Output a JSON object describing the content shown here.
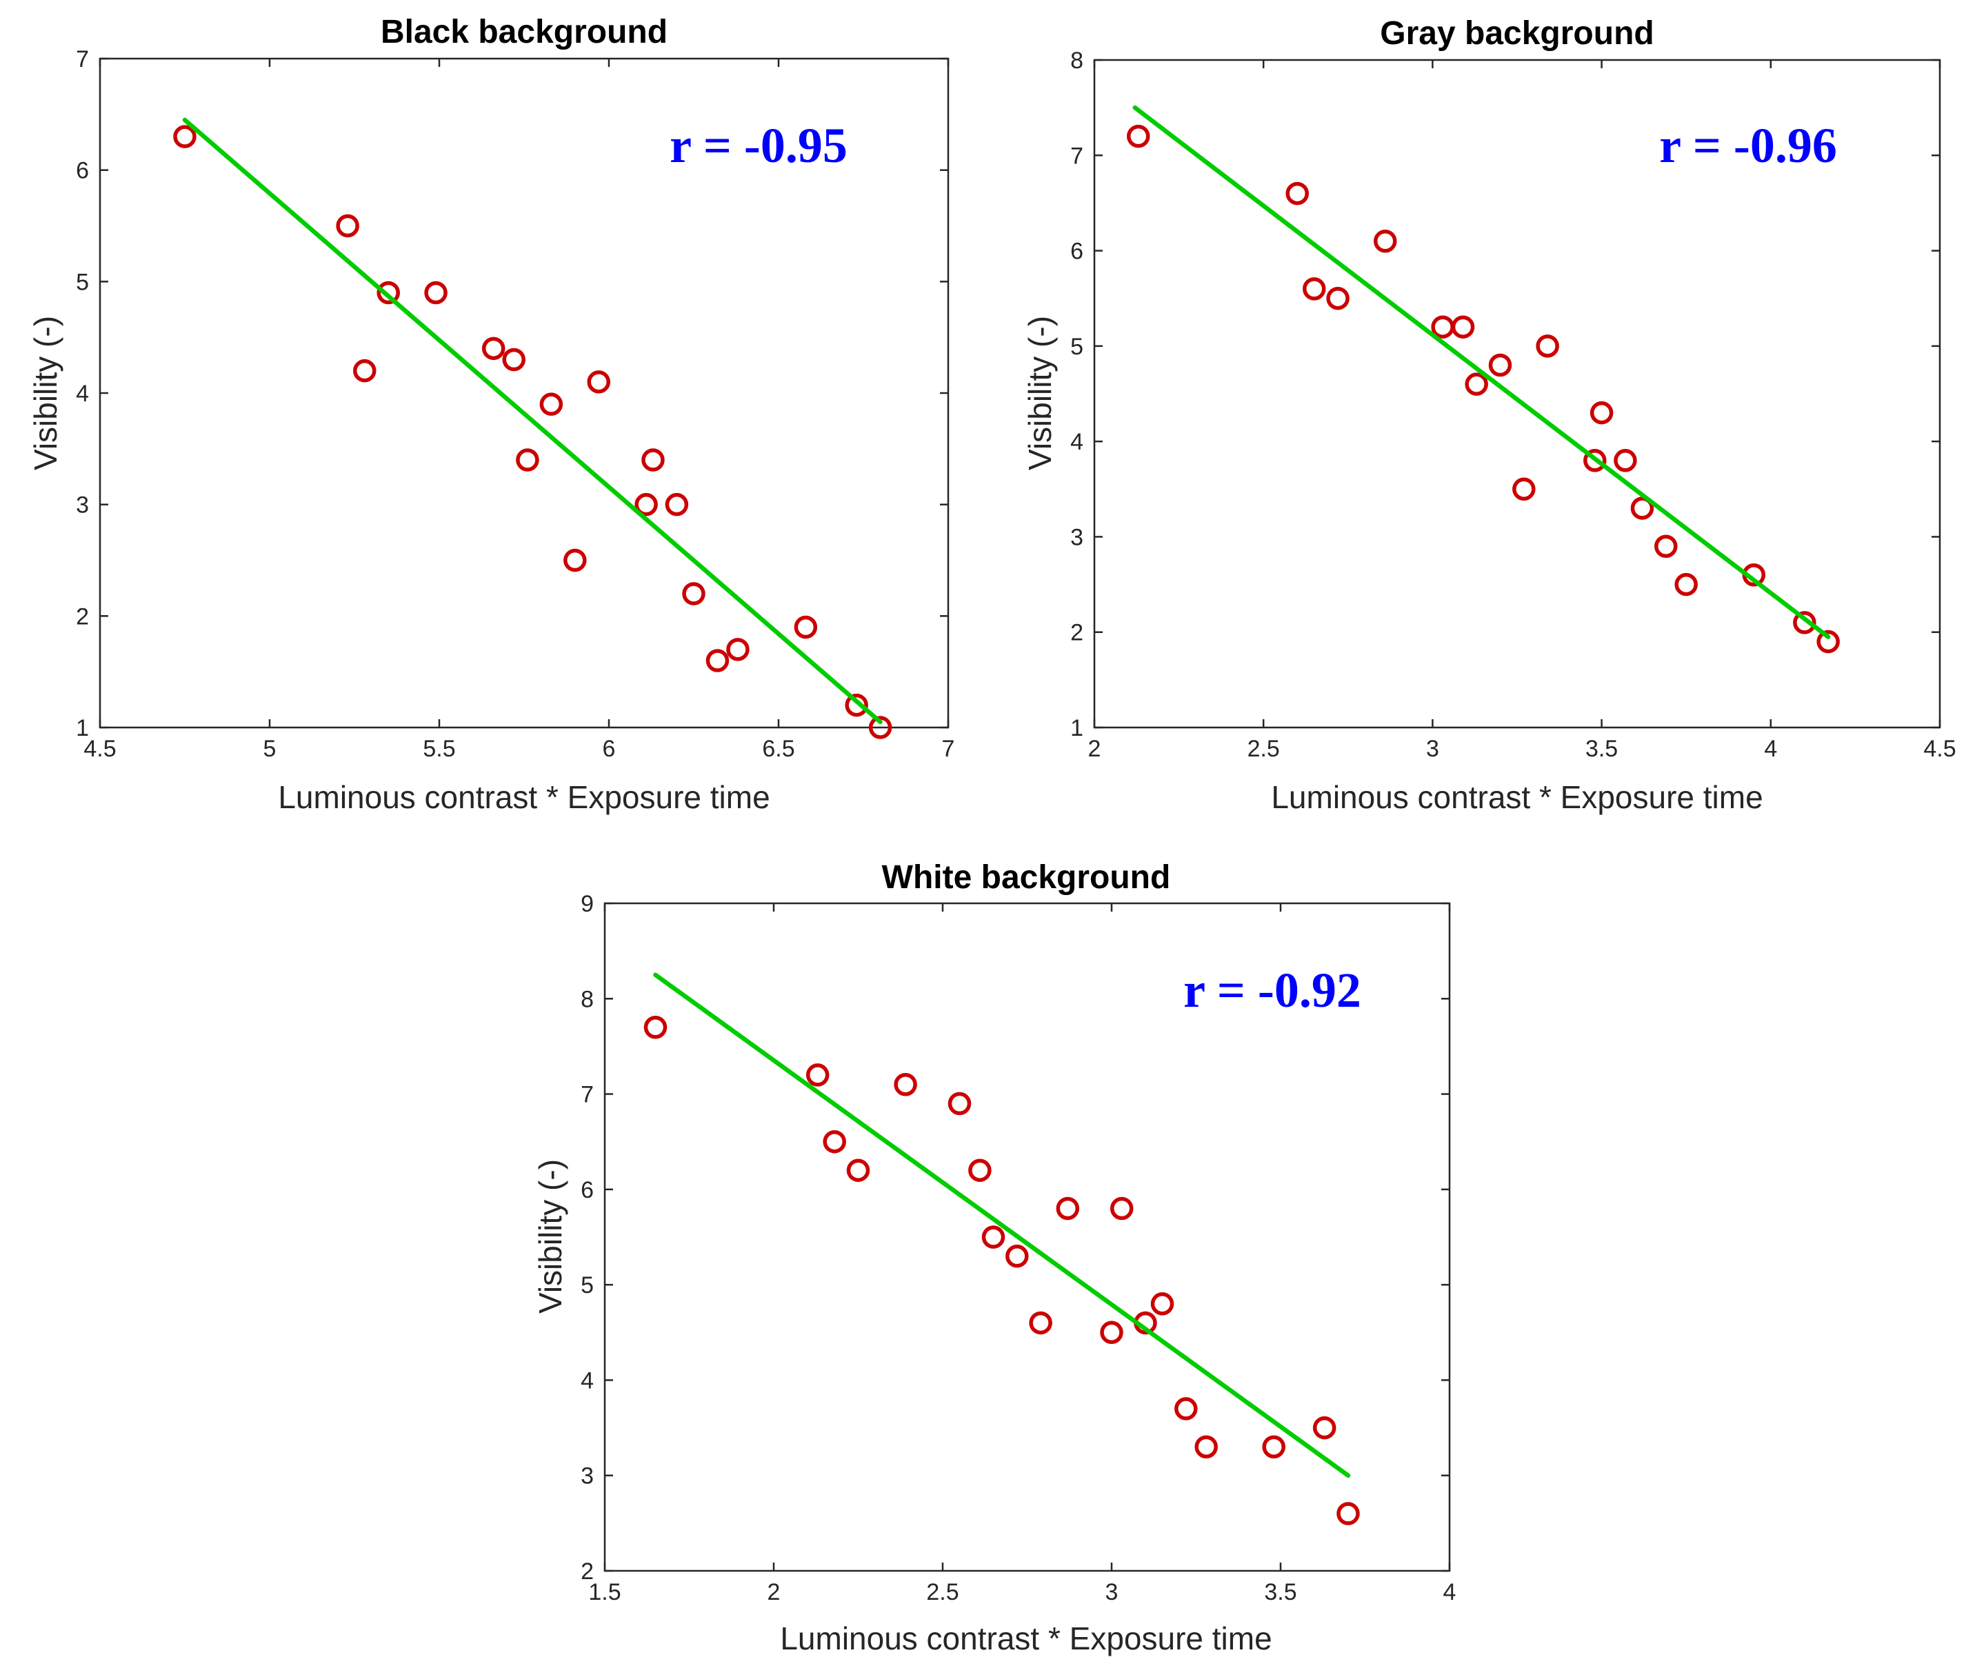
{
  "chart_data": [
    {
      "type": "scatter",
      "title": "Black background",
      "xlabel": "Luminous contrast * Exposure time",
      "ylabel": "Visibility (-)",
      "xlim": [
        4.5,
        7
      ],
      "ylim": [
        1,
        7
      ],
      "xticks": [
        4.5,
        5,
        5.5,
        6,
        6.5,
        7
      ],
      "xtick_labels": [
        "4.5",
        "5",
        "5.5",
        "6",
        "6.5",
        "7"
      ],
      "yticks": [
        1,
        2,
        3,
        4,
        5,
        6,
        7
      ],
      "ytick_labels": [
        "1",
        "2",
        "3",
        "4",
        "5",
        "6",
        "7"
      ],
      "annotation": "r = -0.95",
      "fit_line": {
        "x": [
          4.75,
          6.8
        ],
        "y": [
          6.45,
          1.05
        ]
      },
      "series": [
        {
          "name": "observations",
          "color": "#cc0000",
          "marker": "circle",
          "x": [
            4.75,
            5.23,
            5.28,
            5.35,
            5.49,
            5.66,
            5.72,
            5.76,
            5.83,
            5.9,
            5.97,
            6.11,
            6.13,
            6.2,
            6.25,
            6.32,
            6.38,
            6.58,
            6.73,
            6.8
          ],
          "y": [
            6.3,
            5.5,
            4.2,
            4.9,
            4.9,
            4.4,
            4.3,
            3.4,
            3.9,
            2.5,
            4.1,
            3.0,
            3.4,
            3.0,
            2.2,
            1.6,
            1.7,
            1.9,
            1.2,
            1.0
          ]
        },
        {
          "name": "linear fit",
          "color": "#00cc00",
          "marker": "line"
        }
      ]
    },
    {
      "type": "scatter",
      "title": "Gray background",
      "xlabel": "Luminous contrast * Exposure time",
      "ylabel": "Visibility (-)",
      "xlim": [
        2,
        4.5
      ],
      "ylim": [
        1,
        8
      ],
      "xticks": [
        2,
        2.5,
        3,
        3.5,
        4,
        4.5
      ],
      "xtick_labels": [
        "2",
        "2.5",
        "3",
        "3.5",
        "4",
        "4.5"
      ],
      "yticks": [
        1,
        2,
        3,
        4,
        5,
        6,
        7,
        8
      ],
      "ytick_labels": [
        "1",
        "2",
        "3",
        "4",
        "5",
        "6",
        "7",
        "8"
      ],
      "annotation": "r = -0.96",
      "fit_line": {
        "x": [
          2.12,
          4.17
        ],
        "y": [
          7.5,
          1.95
        ]
      },
      "series": [
        {
          "name": "observations",
          "color": "#cc0000",
          "marker": "circle",
          "x": [
            2.13,
            2.6,
            2.65,
            2.72,
            2.86,
            3.03,
            3.09,
            3.13,
            3.2,
            3.27,
            3.34,
            3.48,
            3.5,
            3.57,
            3.62,
            3.69,
            3.75,
            3.95,
            4.1,
            4.17
          ],
          "y": [
            7.2,
            6.6,
            5.6,
            5.5,
            6.1,
            5.2,
            5.2,
            4.6,
            4.8,
            3.5,
            5.0,
            3.8,
            4.3,
            3.8,
            3.3,
            2.9,
            2.5,
            2.6,
            2.1,
            1.9
          ]
        },
        {
          "name": "linear fit",
          "color": "#00cc00",
          "marker": "line"
        }
      ]
    },
    {
      "type": "scatter",
      "title": "White background",
      "xlabel": "Luminous contrast * Exposure time",
      "ylabel": "Visibility (-)",
      "xlim": [
        1.5,
        4
      ],
      "ylim": [
        2,
        9
      ],
      "xticks": [
        1.5,
        2,
        2.5,
        3,
        3.5,
        4
      ],
      "xtick_labels": [
        "1.5",
        "2",
        "2.5",
        "3",
        "3.5",
        "4"
      ],
      "yticks": [
        2,
        3,
        4,
        5,
        6,
        7,
        8,
        9
      ],
      "ytick_labels": [
        "2",
        "3",
        "4",
        "5",
        "6",
        "7",
        "8",
        "9"
      ],
      "annotation": "r = -0.92",
      "fit_line": {
        "x": [
          1.65,
          3.7
        ],
        "y": [
          8.25,
          3.0
        ]
      },
      "series": [
        {
          "name": "observations",
          "color": "#cc0000",
          "marker": "circle",
          "x": [
            1.65,
            2.13,
            2.18,
            2.25,
            2.39,
            2.55,
            2.61,
            2.65,
            2.72,
            2.79,
            2.87,
            3.0,
            3.03,
            3.1,
            3.15,
            3.22,
            3.28,
            3.48,
            3.63,
            3.7
          ],
          "y": [
            7.7,
            7.2,
            6.5,
            6.2,
            7.1,
            6.9,
            6.2,
            5.5,
            5.3,
            4.6,
            5.8,
            4.5,
            5.8,
            4.6,
            4.8,
            3.7,
            3.3,
            3.3,
            3.5,
            2.6
          ]
        },
        {
          "name": "linear fit",
          "color": "#00cc00",
          "marker": "line"
        }
      ]
    }
  ]
}
